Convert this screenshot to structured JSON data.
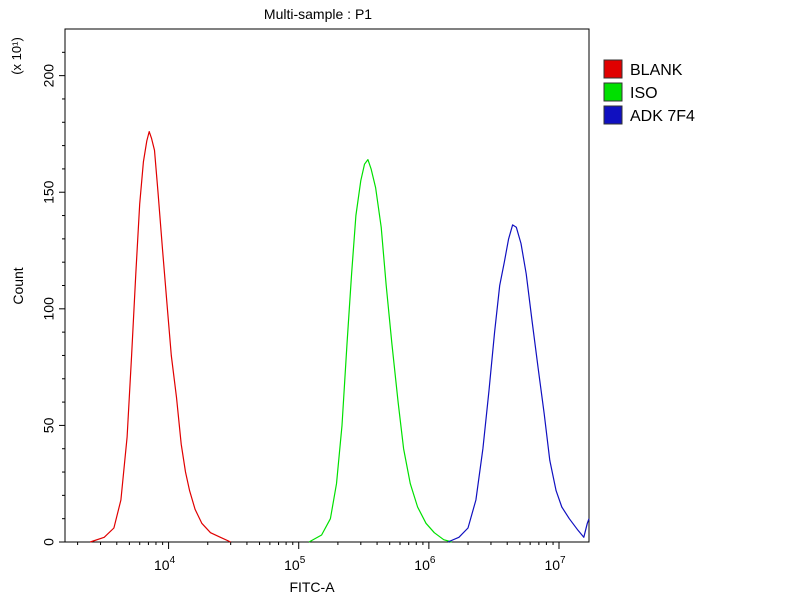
{
  "chart_data": {
    "type": "line",
    "title": "Multi-sample : P1",
    "xlabel": "FITC-A",
    "ylabel": "Count",
    "y_multiplier_label": "(x 10¹)",
    "x_scale": "log",
    "xlim": [
      1600,
      17000000
    ],
    "ylim": [
      0,
      220
    ],
    "x_ticks": [
      {
        "value": 10000,
        "base": "10",
        "exp": "4"
      },
      {
        "value": 100000,
        "base": "10",
        "exp": "5"
      },
      {
        "value": 1000000,
        "base": "10",
        "exp": "6"
      },
      {
        "value": 10000000,
        "base": "10",
        "exp": "7"
      }
    ],
    "y_ticks": [
      {
        "value": 0,
        "label": "0"
      },
      {
        "value": 50,
        "label": "50"
      },
      {
        "value": 100,
        "label": "100"
      },
      {
        "value": 150,
        "label": "150"
      },
      {
        "value": 200,
        "label": "200"
      }
    ],
    "legend_position": "right",
    "series": [
      {
        "name": "BLANK",
        "color": "#e00000",
        "points": [
          [
            2500,
            0
          ],
          [
            3200,
            2
          ],
          [
            3800,
            6
          ],
          [
            4300,
            18
          ],
          [
            4800,
            45
          ],
          [
            5200,
            80
          ],
          [
            5600,
            115
          ],
          [
            6000,
            145
          ],
          [
            6400,
            163
          ],
          [
            6800,
            172
          ],
          [
            7100,
            176
          ],
          [
            7400,
            173
          ],
          [
            7800,
            168
          ],
          [
            8300,
            150
          ],
          [
            9000,
            125
          ],
          [
            9800,
            100
          ],
          [
            10500,
            80
          ],
          [
            11500,
            62
          ],
          [
            12500,
            42
          ],
          [
            13500,
            30
          ],
          [
            14500,
            22
          ],
          [
            16000,
            14
          ],
          [
            18000,
            8
          ],
          [
            21000,
            4
          ],
          [
            25000,
            2
          ],
          [
            30000,
            0
          ]
        ]
      },
      {
        "name": "ISO",
        "color": "#00e000",
        "points": [
          [
            120000,
            0
          ],
          [
            150000,
            3
          ],
          [
            175000,
            10
          ],
          [
            195000,
            25
          ],
          [
            215000,
            50
          ],
          [
            235000,
            85
          ],
          [
            255000,
            115
          ],
          [
            275000,
            140
          ],
          [
            300000,
            155
          ],
          [
            320000,
            162
          ],
          [
            340000,
            164
          ],
          [
            360000,
            160
          ],
          [
            390000,
            152
          ],
          [
            430000,
            135
          ],
          [
            470000,
            110
          ],
          [
            520000,
            85
          ],
          [
            580000,
            60
          ],
          [
            640000,
            40
          ],
          [
            720000,
            25
          ],
          [
            820000,
            15
          ],
          [
            950000,
            8
          ],
          [
            1100000,
            4
          ],
          [
            1300000,
            1
          ],
          [
            1500000,
            0
          ]
        ]
      },
      {
        "name": "ADK 7F4",
        "color": "#1010c0",
        "points": [
          [
            1400000,
            0
          ],
          [
            1700000,
            2
          ],
          [
            2000000,
            6
          ],
          [
            2300000,
            18
          ],
          [
            2600000,
            40
          ],
          [
            2900000,
            65
          ],
          [
            3200000,
            90
          ],
          [
            3500000,
            110
          ],
          [
            3800000,
            120
          ],
          [
            4100000,
            130
          ],
          [
            4400000,
            136
          ],
          [
            4700000,
            135
          ],
          [
            5100000,
            128
          ],
          [
            5600000,
            115
          ],
          [
            6200000,
            95
          ],
          [
            6900000,
            75
          ],
          [
            7700000,
            55
          ],
          [
            8500000,
            35
          ],
          [
            9500000,
            22
          ],
          [
            10500000,
            15
          ],
          [
            12000000,
            10
          ],
          [
            14000000,
            5
          ],
          [
            15500000,
            2
          ],
          [
            16500000,
            8
          ],
          [
            17000000,
            10
          ]
        ]
      }
    ]
  }
}
